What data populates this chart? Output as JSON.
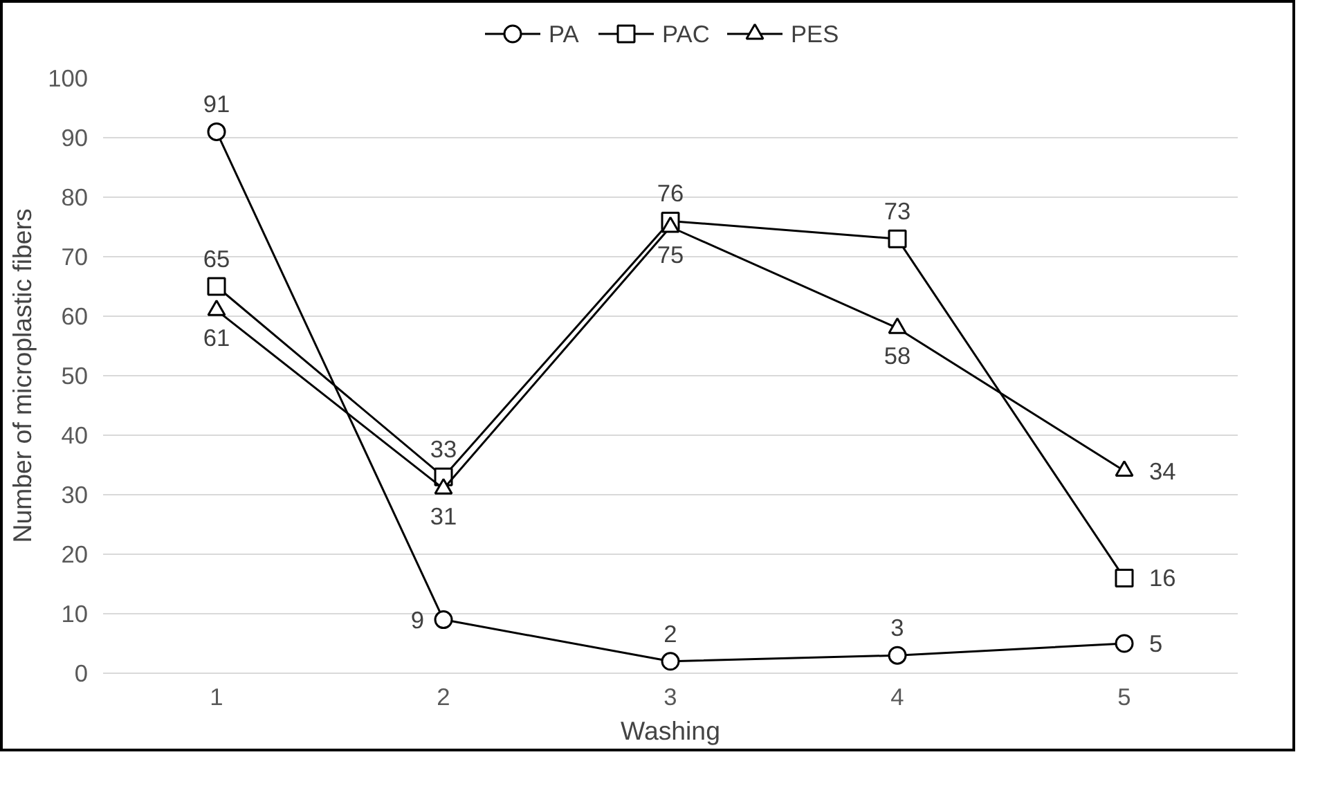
{
  "chart_data": {
    "type": "line",
    "xlabel": "Washing",
    "ylabel": "Number of microplastic fibers",
    "categories": [
      "1",
      "2",
      "3",
      "4",
      "5"
    ],
    "series": [
      {
        "name": "PA",
        "color": "#000000",
        "marker": "circle",
        "values": [
          91,
          9,
          2,
          3,
          5
        ]
      },
      {
        "name": "PAC",
        "color": "#000000",
        "marker": "square",
        "values": [
          65,
          33,
          76,
          73,
          16
        ]
      },
      {
        "name": "PES",
        "color": "#000000",
        "marker": "triangle",
        "values": [
          61,
          31,
          75,
          58,
          34
        ]
      }
    ],
    "ylim": [
      0,
      100
    ],
    "yticks": [
      0,
      10,
      20,
      30,
      40,
      50,
      60,
      70,
      80,
      90,
      100
    ],
    "grid": "y",
    "legend": "top",
    "data_labels": true,
    "line_style": "solid"
  }
}
